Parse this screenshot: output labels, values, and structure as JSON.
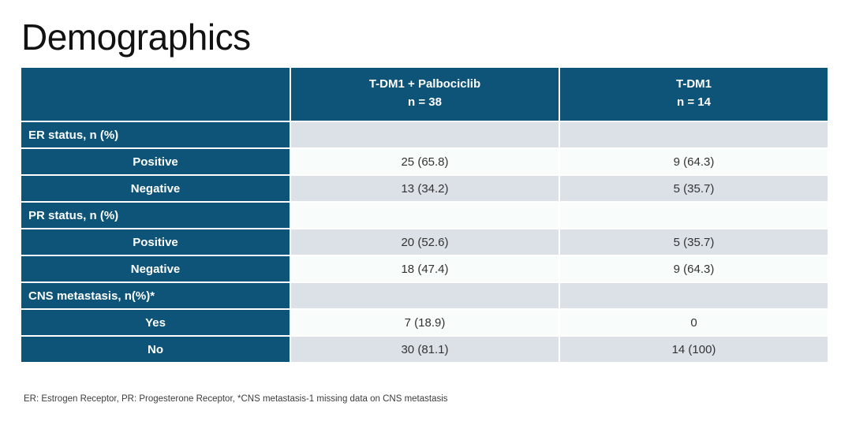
{
  "slide": {
    "title": "Demographics",
    "footnote": "ER: Estrogen Receptor, PR: Progesterone Receptor, *CNS metastasis-1 missing data on CNS metastasis"
  },
  "colors": {
    "header_bg": "#0d5478",
    "row_gray": "#dce1e8",
    "row_white": "#f8fcfb",
    "label_text": "#ffffff",
    "data_text": "#333333"
  },
  "table": {
    "columns": [
      {
        "title": "T-DM1 + Palbociclib",
        "subtitle": "n = 38"
      },
      {
        "title": "T-DM1",
        "subtitle": "n = 14"
      }
    ],
    "rows": [
      {
        "label": "ER status, n (%)",
        "type": "section",
        "shade": "gray",
        "values": [
          "",
          ""
        ]
      },
      {
        "label": "Positive",
        "type": "sub",
        "shade": "white",
        "values": [
          "25 (65.8)",
          "9 (64.3)"
        ]
      },
      {
        "label": "Negative",
        "type": "sub",
        "shade": "gray",
        "values": [
          "13 (34.2)",
          "5 (35.7)"
        ]
      },
      {
        "label": "PR status, n (%)",
        "type": "section",
        "shade": "white",
        "values": [
          "",
          ""
        ]
      },
      {
        "label": "Positive",
        "type": "sub",
        "shade": "gray",
        "values": [
          "20 (52.6)",
          "5 (35.7)"
        ]
      },
      {
        "label": "Negative",
        "type": "sub",
        "shade": "white",
        "values": [
          "18 (47.4)",
          "9 (64.3)"
        ]
      },
      {
        "label": "CNS metastasis, n(%)*",
        "type": "section",
        "shade": "gray",
        "values": [
          "",
          ""
        ]
      },
      {
        "label": "Yes",
        "type": "sub",
        "shade": "white",
        "values": [
          "7 (18.9)",
          "0"
        ]
      },
      {
        "label": "No",
        "type": "sub",
        "shade": "gray",
        "values": [
          "30 (81.1)",
          "14 (100)"
        ]
      }
    ]
  }
}
